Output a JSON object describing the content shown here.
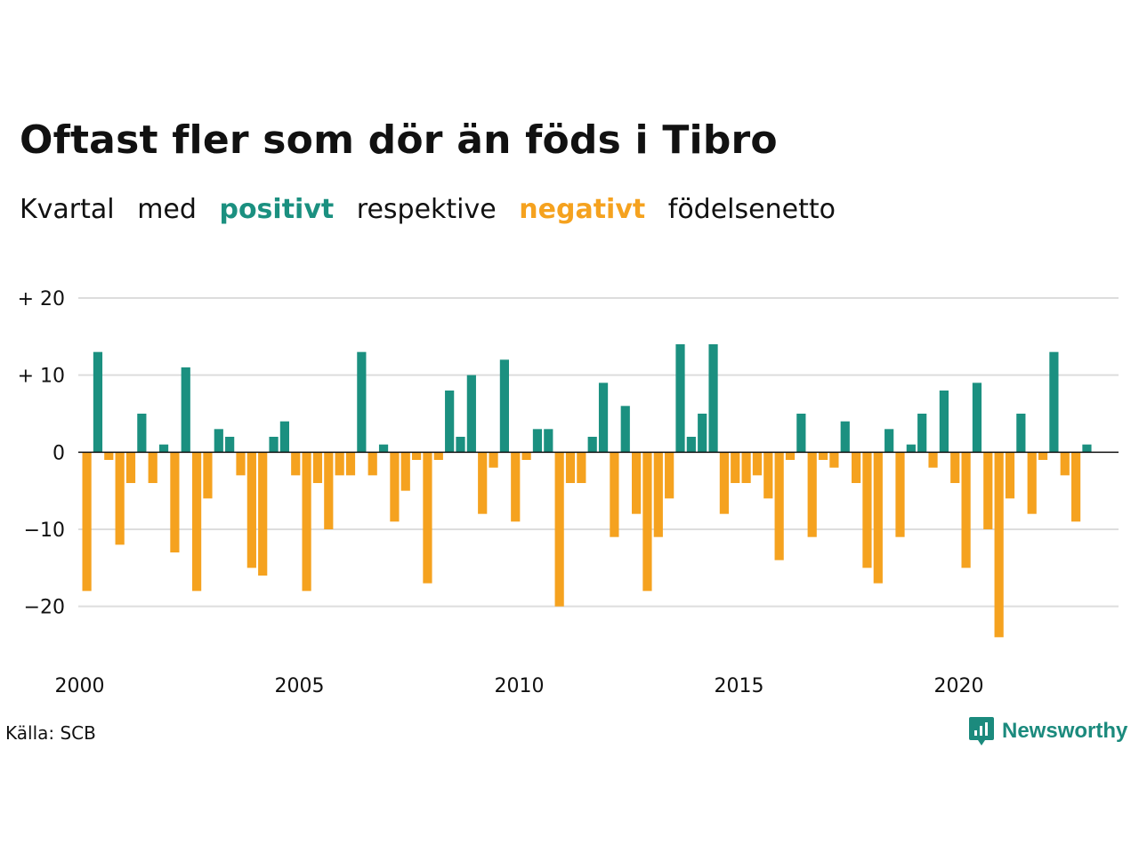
{
  "title": "Oftast fler som dör än föds i Tibro",
  "subtitle": {
    "part1": "Kvartal",
    "part2": "med",
    "positive": "positivt",
    "part3": "respektive",
    "negative": "negativt",
    "part4": "födelsenetto"
  },
  "source": "Källa: SCB",
  "logo_text": "Newsworthy",
  "colors": {
    "positive": "#1b9080",
    "negative": "#f5a21f",
    "grid": "#dddddd"
  },
  "chart_data": {
    "type": "bar",
    "ylim": [
      -25,
      20
    ],
    "yticks": [
      20,
      10,
      0,
      -10,
      -20
    ],
    "ytick_labels": [
      "+ 20",
      "+ 10",
      "0",
      "−10",
      "−20"
    ],
    "xticks": [
      2000,
      2005,
      2010,
      2015,
      2020
    ],
    "xtick_labels": [
      "2000",
      "2005",
      "2010",
      "2015",
      "2020"
    ],
    "start_year": 2000,
    "quarters_per_year": 4,
    "values": [
      -18,
      13,
      -1,
      -12,
      -4,
      5,
      -4,
      1,
      -13,
      11,
      -18,
      -6,
      3,
      2,
      -3,
      -15,
      -16,
      2,
      4,
      -3,
      -18,
      -4,
      -10,
      -3,
      -3,
      13,
      -3,
      1,
      -9,
      -5,
      -1,
      -17,
      -1,
      8,
      2,
      10,
      -8,
      -2,
      12,
      -9,
      -1,
      3,
      3,
      -20,
      -4,
      -4,
      2,
      9,
      -11,
      6,
      -8,
      -18,
      -11,
      -6,
      14,
      2,
      5,
      14,
      -8,
      -4,
      -4,
      -3,
      -6,
      -14,
      -1,
      5,
      -11,
      -1,
      -2,
      4,
      -4,
      -15,
      -17,
      3,
      -11,
      1,
      5,
      -2,
      8,
      -4,
      -15,
      9,
      -10,
      -24,
      -6,
      5,
      -8,
      -1,
      13,
      -3,
      -9,
      1
    ]
  }
}
